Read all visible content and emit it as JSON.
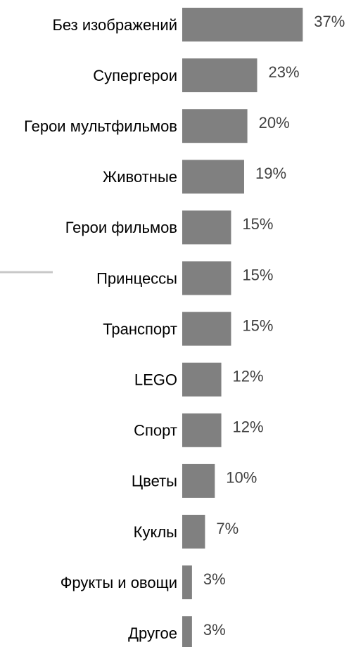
{
  "chart_data": {
    "type": "bar",
    "orientation": "horizontal",
    "categories": [
      "Без изображений",
      "Супергерои",
      "Герои мультфильмов",
      "Животные",
      "Герои фильмов",
      "Принцессы",
      "Транспорт",
      "LEGO",
      "Спорт",
      "Цветы",
      "Куклы",
      "Фрукты и овощи",
      "Другое"
    ],
    "values": [
      37,
      23,
      20,
      19,
      15,
      15,
      15,
      12,
      12,
      10,
      7,
      3,
      3
    ],
    "value_labels": [
      "37%",
      "23%",
      "20%",
      "19%",
      "15%",
      "15%",
      "15%",
      "12%",
      "12%",
      "10%",
      "7%",
      "3%",
      "3%"
    ],
    "color": "#808080"
  }
}
